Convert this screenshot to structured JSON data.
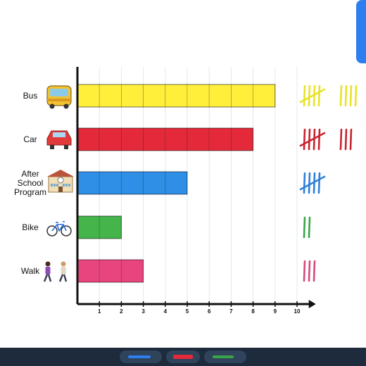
{
  "chart_data": {
    "type": "bar",
    "orientation": "horizontal",
    "categories": [
      "Bus",
      "Car",
      "After School Program",
      "Bike",
      "Walk"
    ],
    "category_lines": [
      [
        "Bus"
      ],
      [
        "Car"
      ],
      [
        "After",
        "School",
        "Program"
      ],
      [
        "Bike"
      ],
      [
        "Walk"
      ]
    ],
    "category_icons": [
      "bus-icon",
      "car-icon",
      "school-icon",
      "bicycle-icon",
      "walking-people-icon"
    ],
    "values": [
      9,
      8,
      5,
      2,
      3
    ],
    "colors": [
      "#ffef3a",
      "#e42a3a",
      "#2f8fe6",
      "#45b54b",
      "#e8457f"
    ],
    "tally_colors": [
      "#e9e22a",
      "#c8232f",
      "#2f7fd8",
      "#3aa54a",
      "#d64a7e"
    ],
    "xlim": [
      0,
      10
    ],
    "xticks": [
      1,
      2,
      3,
      4,
      5,
      6,
      7,
      8,
      9,
      10
    ],
    "title": "",
    "xlabel": "",
    "ylabel": "",
    "grid": true,
    "legend": "none"
  },
  "toolbar": {
    "tools": [
      {
        "name": "blue-pen-tool",
        "color": "#2d7ff0"
      },
      {
        "name": "red-marker-tool",
        "color": "#e42a3a"
      },
      {
        "name": "green-pencil-tool",
        "color": "#3aa54a"
      }
    ]
  },
  "colors": {
    "accent": "#2d7ff0",
    "bottom_bar": "#1d2b3d"
  }
}
